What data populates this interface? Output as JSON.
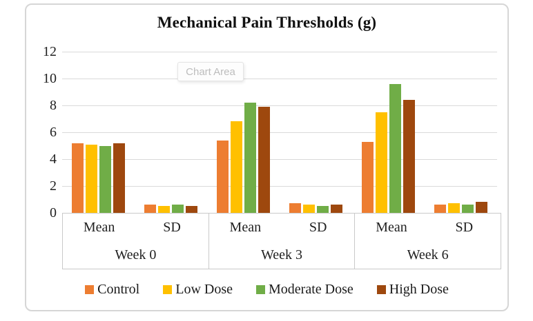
{
  "chart": {
    "tooltip": "Chart Area"
  },
  "chart_data": {
    "type": "bar",
    "title": "Mechanical Pain Thresholds (g)",
    "group_labels": [
      "Week 0",
      "Week 3",
      "Week 6"
    ],
    "sub_labels": [
      "Mean",
      "SD"
    ],
    "categories": [
      "Week 0 Mean",
      "Week 0 SD",
      "Week 3 Mean",
      "Week 3 SD",
      "Week 6 Mean",
      "Week 6 SD"
    ],
    "series": [
      {
        "name": "Control",
        "color": "#ED7D31",
        "values": [
          5.2,
          0.6,
          5.4,
          0.7,
          5.3,
          0.6
        ]
      },
      {
        "name": "Low Dose",
        "color": "#FFC000",
        "values": [
          5.1,
          0.5,
          6.8,
          0.6,
          7.5,
          0.7
        ]
      },
      {
        "name": "Moderate Dose",
        "color": "#70AD47",
        "values": [
          5.0,
          0.6,
          8.2,
          0.5,
          9.6,
          0.6
        ]
      },
      {
        "name": "High Dose",
        "color": "#9E480E",
        "values": [
          5.2,
          0.5,
          7.9,
          0.6,
          8.4,
          0.8
        ]
      }
    ],
    "ylim": [
      0,
      12
    ],
    "y_ticks": [
      0,
      2,
      4,
      6,
      8,
      10,
      12
    ],
    "grid": true,
    "legend_position": "bottom",
    "axis_text_color": "#1f1f1f"
  }
}
